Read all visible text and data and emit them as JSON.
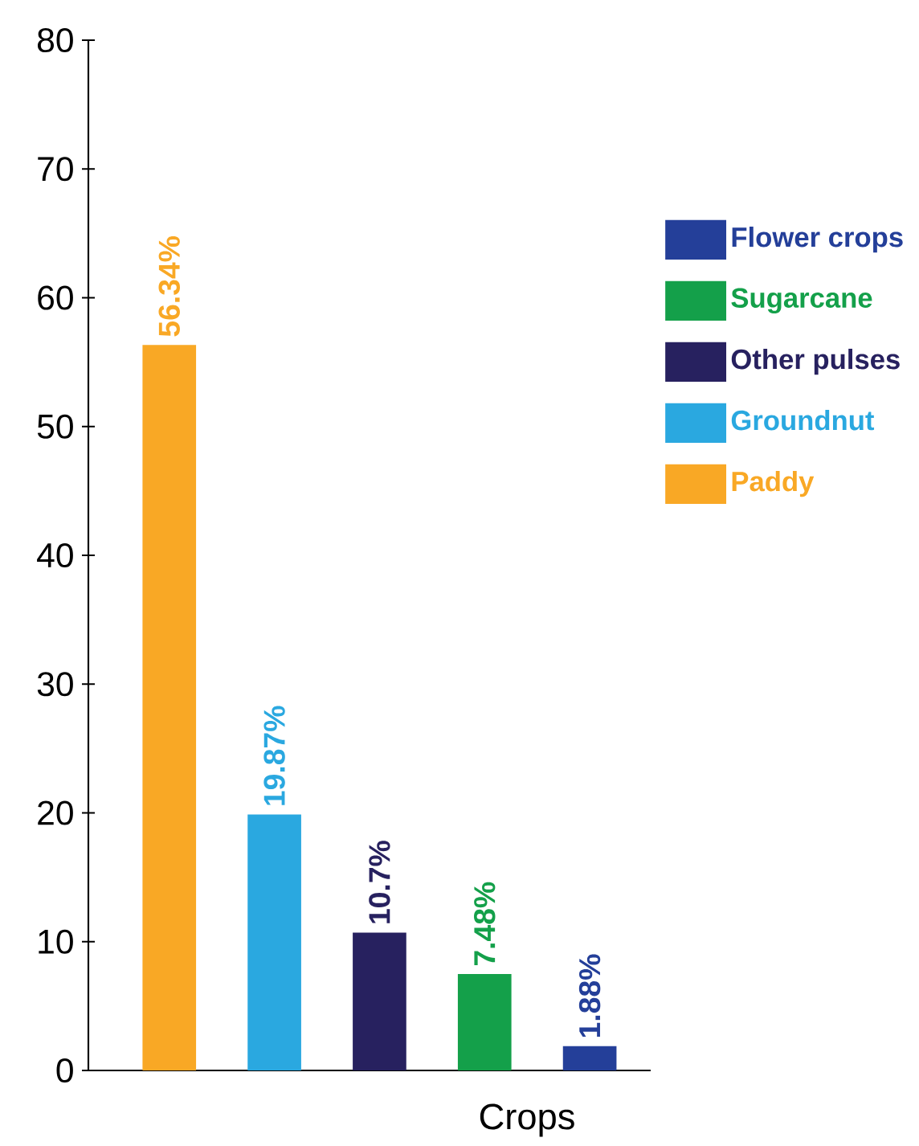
{
  "chart_data": {
    "type": "bar",
    "xlabel": "Crops",
    "categories": [
      null,
      null,
      null,
      null,
      null
    ],
    "series": [
      {
        "name": "Flower crops",
        "color": "#243f99",
        "values": [
          null,
          null,
          null,
          null,
          1.88
        ],
        "value_labels": [
          null,
          null,
          null,
          null,
          "1.88%"
        ]
      },
      {
        "name": "Sugarcane",
        "color": "#14a04a",
        "values": [
          null,
          null,
          null,
          7.48,
          null
        ],
        "value_labels": [
          null,
          null,
          null,
          "7.48%",
          null
        ]
      },
      {
        "name": "Other pulses",
        "color": "#27215f",
        "values": [
          null,
          null,
          10.7,
          null,
          null
        ],
        "value_labels": [
          null,
          null,
          "10.7%",
          null,
          null
        ]
      },
      {
        "name": "Groundnut",
        "color": "#2aa8e0",
        "values": [
          null,
          19.87,
          null,
          null,
          null
        ],
        "value_labels": [
          null,
          "19.87%",
          null,
          null,
          null
        ]
      },
      {
        "name": "Paddy",
        "color": "#f9a825",
        "values": [
          56.34,
          null,
          null,
          null,
          null
        ],
        "value_labels": [
          "56.34%",
          null,
          null,
          null,
          null
        ]
      }
    ],
    "ylim": [
      0,
      80
    ],
    "yticks": [
      0,
      10,
      20,
      30,
      40,
      50,
      60,
      70,
      80
    ],
    "legend": "top right"
  }
}
